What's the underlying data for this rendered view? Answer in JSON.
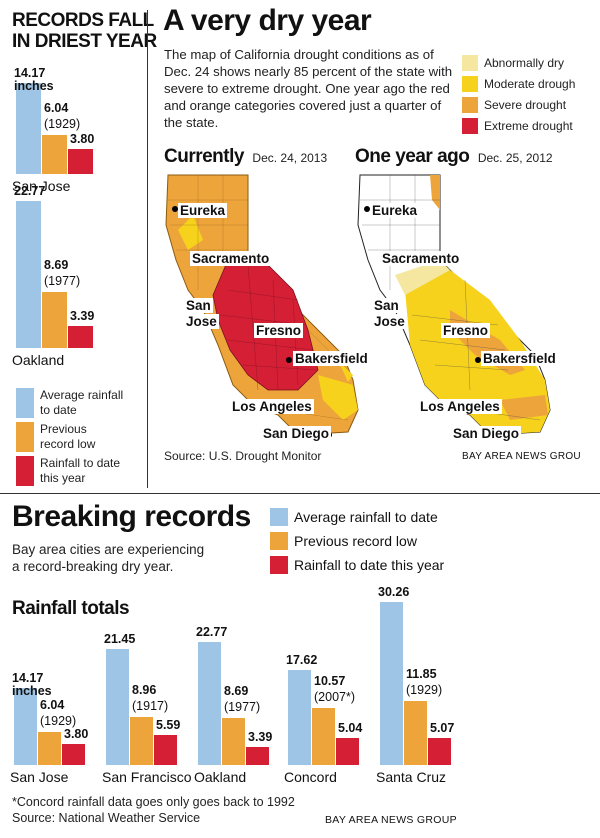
{
  "colors": {
    "blue": "#9ec5e6",
    "orange": "#eda53b",
    "red": "#d41f35",
    "yellow_light": "#f6e7a0",
    "yellow": "#f6d21c"
  },
  "sidebar": {
    "title_line1": "RECORDS FALL",
    "title_line2": "IN DRIEST YEAR",
    "unit": "inches",
    "legend": [
      {
        "label_line1": "Average rainfall",
        "label_line2": "to date"
      },
      {
        "label_line1": "Previous",
        "label_line2": "record low"
      },
      {
        "label_line1": "Rainfall to date",
        "label_line2": "this year"
      }
    ]
  },
  "map_section": {
    "title": "A very dry year",
    "description": "The map of California drought conditions as of Dec. 24 shows nearly 85 percent of the state with severe to extreme drought. One year ago the red and orange categories covered just a quarter of the state.",
    "legend": [
      "Abnormally dry",
      "Moderate drough",
      "Severe drought",
      "Extreme drought"
    ],
    "current_label": "Currently",
    "current_date": "Dec. 24, 2013",
    "past_label": "One year ago",
    "past_date": "Dec. 25, 2012",
    "cities": [
      "Eureka",
      "Sacramento",
      "San",
      "Jose",
      "Fresno",
      "Bakersfield",
      "Los Angeles",
      "San Diego"
    ],
    "source": "Source: U.S. Drought Monitor",
    "credit": "BAY AREA NEWS GROU"
  },
  "bottom": {
    "title": "Breaking records",
    "subtitle_line1": "Bay area cities are experiencing",
    "subtitle_line2": "a record-breaking dry year.",
    "legend": [
      "Average rainfall to date",
      "Previous record low",
      "Rainfall to date this year"
    ],
    "chart_title": "Rainfall totals",
    "unit": "inches",
    "footnote": "*Concord rainfall data goes only goes back to 1992",
    "source": "Source: National Weather Service",
    "credit": "BAY AREA NEWS GROUP"
  },
  "chart_data": [
    {
      "type": "bar",
      "title": "RECORDS FALL IN DRIEST YEAR",
      "ylabel": "inches",
      "categories": [
        "San Jose",
        "Oakland"
      ],
      "series": [
        {
          "name": "Average rainfall to date",
          "values": [
            14.17,
            22.77
          ],
          "labels": [
            "14.17",
            "22.77"
          ]
        },
        {
          "name": "Previous record low",
          "values": [
            6.04,
            8.69
          ],
          "labels": [
            "6.04",
            "8.69"
          ],
          "years": [
            "(1929)",
            "(1977)"
          ]
        },
        {
          "name": "Rainfall to date this year",
          "values": [
            3.8,
            3.39
          ],
          "labels": [
            "3.80",
            "3.39"
          ]
        }
      ]
    },
    {
      "type": "bar",
      "title": "Rainfall totals",
      "ylabel": "inches",
      "categories": [
        "San Jose",
        "San Francisco",
        "Oakland",
        "Concord",
        "Santa Cruz"
      ],
      "series": [
        {
          "name": "Average rainfall to date",
          "values": [
            14.17,
            21.45,
            22.77,
            17.62,
            30.26
          ],
          "labels": [
            "14.17",
            "21.45",
            "22.77",
            "17.62",
            "30.26"
          ]
        },
        {
          "name": "Previous record low",
          "values": [
            6.04,
            8.96,
            8.69,
            10.57,
            11.85
          ],
          "labels": [
            "6.04",
            "8.96",
            "8.69",
            "10.57",
            "11.85"
          ],
          "years": [
            "(1929)",
            "(1917)",
            "(1977)",
            "(2007*)",
            "(1929)"
          ]
        },
        {
          "name": "Rainfall to date this year",
          "values": [
            3.8,
            5.59,
            3.39,
            5.04,
            5.07
          ],
          "labels": [
            "3.80",
            "5.59",
            "3.39",
            "5.04",
            "5.07"
          ]
        }
      ]
    }
  ]
}
